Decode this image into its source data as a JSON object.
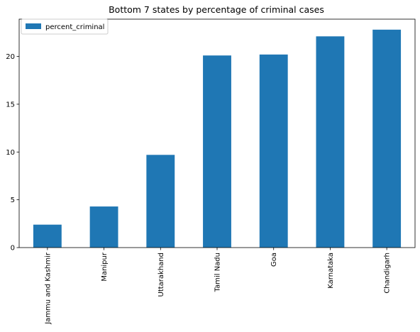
{
  "chart_data": {
    "type": "bar",
    "title": "Bottom 7 states by percentage of criminal cases",
    "xlabel": "",
    "ylabel": "",
    "categories": [
      "Jammu and Kashmir",
      "Manipur",
      "Uttarakhand",
      "Tamil Nadu",
      "Goa",
      "Karnataka",
      "Chandigarh"
    ],
    "series": [
      {
        "name": "percent_criminal",
        "color": "#1f77b4",
        "values": [
          2.4,
          4.3,
          9.7,
          20.1,
          20.2,
          22.1,
          22.8
        ]
      }
    ],
    "ylim": [
      0,
      23.9
    ],
    "yticks": [
      0,
      5,
      10,
      15,
      20
    ],
    "grid": false,
    "legend_position": "top-left"
  }
}
